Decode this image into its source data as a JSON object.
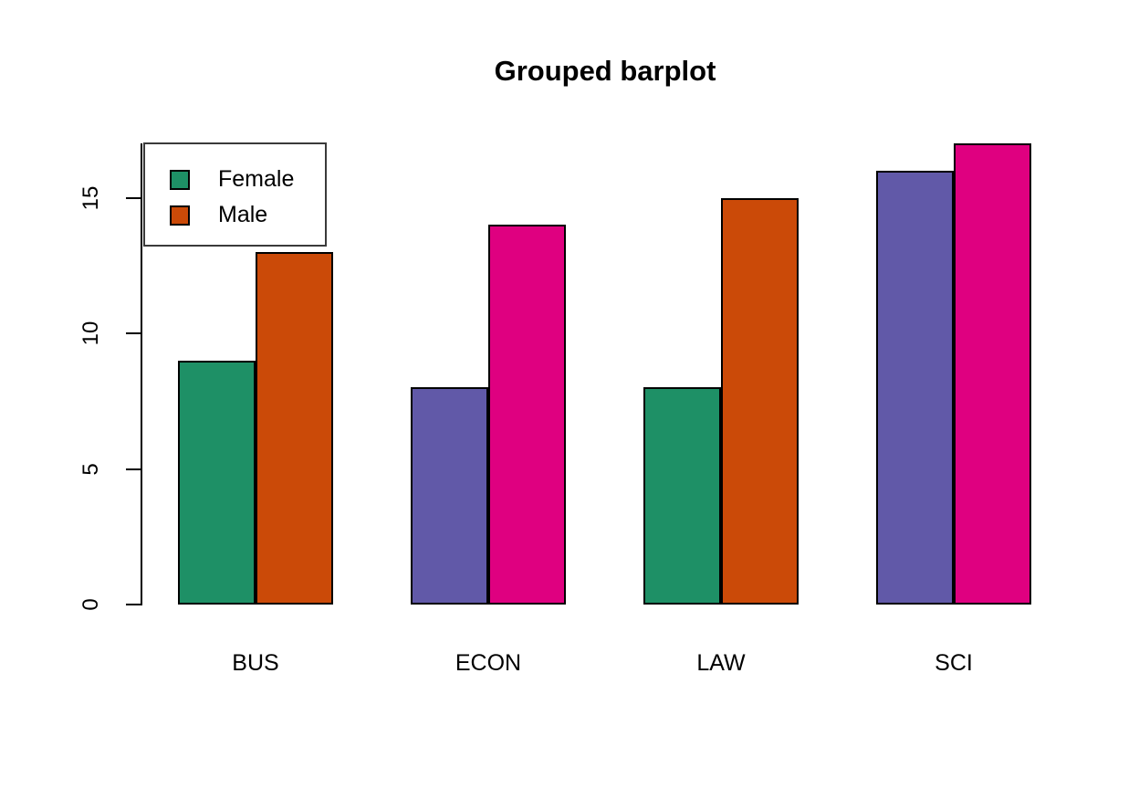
{
  "chart_data": {
    "type": "bar",
    "title": "Grouped barplot",
    "categories": [
      "BUS",
      "ECON",
      "LAW",
      "SCI"
    ],
    "series": [
      {
        "name": "Female",
        "values": [
          9,
          8,
          8,
          16
        ]
      },
      {
        "name": "Male",
        "values": [
          13,
          14,
          15,
          17
        ]
      }
    ],
    "bar_color_cycle": [
      "#1E9066",
      "#CB4A08",
      "#6159A8",
      "#DF0080"
    ],
    "bar_color_note": "4 colors recycled over the 8 bars in plot order: BUS-F green, BUS-M orange, ECON-F purple, ECON-M magenta, LAW-F green, LAW-M orange, SCI-F purple, SCI-M magenta",
    "bar_border_color": "#000000",
    "axis_color": "#000000",
    "ytick_labels": [
      "0",
      "5",
      "10",
      "15"
    ],
    "ytick_values": [
      0,
      5,
      10,
      15
    ],
    "ylim": [
      0,
      17
    ],
    "xlabel": "",
    "ylabel": "",
    "grid": false,
    "legend": {
      "position": "top-left",
      "entries": [
        {
          "label": "Female",
          "color": "#1E9066"
        },
        {
          "label": "Male",
          "color": "#CB4A08"
        }
      ]
    }
  }
}
